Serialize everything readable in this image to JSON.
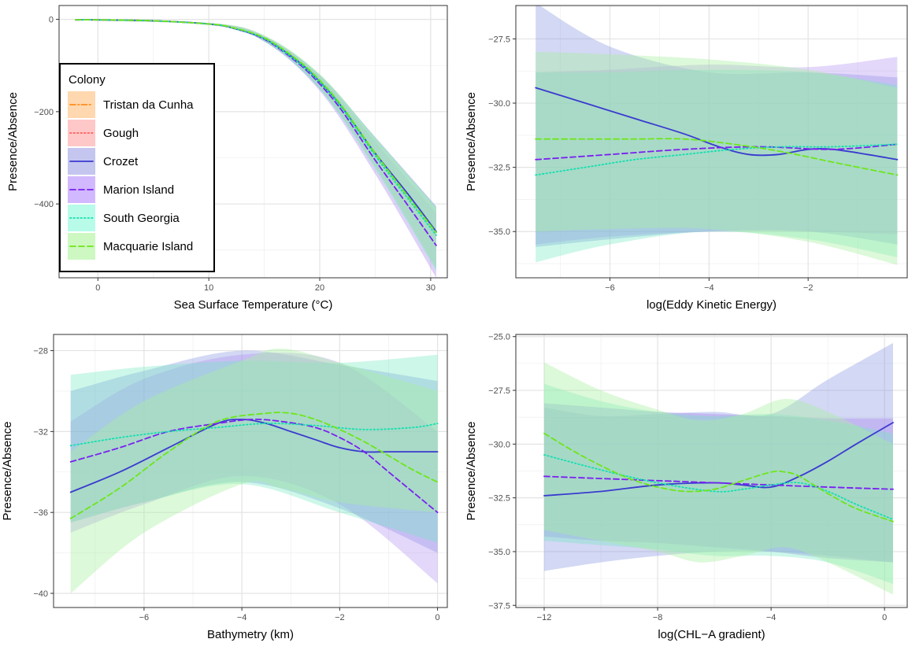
{
  "legend": {
    "title": "Colony",
    "entries": [
      {
        "name": "Tristan da Cunha",
        "color": "#ff8c1a",
        "band": "#ffd8b0",
        "dash": "dashdot"
      },
      {
        "name": "Gough",
        "color": "#ff5a5a",
        "band": "#ffc8c8",
        "dash": "dotted"
      },
      {
        "name": "Crozet",
        "color": "#3a3ad0",
        "band": "#c4c6f0",
        "dash": "solid"
      },
      {
        "name": "Marion Island",
        "color": "#7a1ff0",
        "band": "#d2b8ff",
        "dash": "dashed"
      },
      {
        "name": "South Georgia",
        "color": "#10e0b0",
        "band": "#b8fbe8",
        "dash": "dotted"
      },
      {
        "name": "Macquarie Island",
        "color": "#6ee61a",
        "band": "#cdf8c2",
        "dash": "dashed"
      }
    ]
  },
  "chart_data": [
    {
      "type": "line",
      "xlabel": "Sea Surface Temperature (°C)",
      "ylabel": "Presence/Absence",
      "xlim": [
        -3.5,
        31.5
      ],
      "ylim": [
        -560,
        30
      ],
      "xticks": [
        0,
        10,
        20,
        30
      ],
      "yticks": [
        0,
        -200,
        -400
      ],
      "grid": true,
      "legend_position": "inside-left",
      "series": [
        {
          "name": "Crozet",
          "x": [
            -2,
            0,
            5,
            10,
            12,
            15,
            18,
            20,
            22,
            25,
            28,
            30.5
          ],
          "y": [
            -1,
            -1,
            -3,
            -10,
            -18,
            -42,
            -90,
            -135,
            -190,
            -290,
            -380,
            -460
          ],
          "band_x": [
            -2,
            10,
            15,
            20,
            25,
            30.5
          ],
          "band_lo": [
            -2,
            -12,
            -48,
            -150,
            -320,
            -540
          ],
          "band_hi": [
            0,
            -8,
            -36,
            -120,
            -255,
            -405
          ],
          "band": "#7aa2d8",
          "opacity": 0.55
        },
        {
          "name": "Marion Island",
          "x": [
            -2,
            0,
            5,
            10,
            12,
            15,
            18,
            20,
            22,
            25,
            28,
            30.5
          ],
          "y": [
            -1,
            -1,
            -3,
            -10,
            -18,
            -43,
            -94,
            -140,
            -198,
            -305,
            -405,
            -490
          ],
          "band_x": [
            -2,
            10,
            15,
            20,
            25,
            30.5
          ],
          "band_lo": [
            -2,
            -12,
            -48,
            -155,
            -335,
            -560
          ],
          "band_hi": [
            0,
            -8,
            -36,
            -122,
            -265,
            -420
          ],
          "band": "#b89af0",
          "opacity": 0.45
        },
        {
          "name": "South Georgia",
          "x": [
            -2,
            0,
            5,
            10,
            12,
            15,
            18,
            20,
            22,
            25,
            28,
            30.5
          ],
          "y": [
            -1,
            -1,
            -3,
            -10,
            -18,
            -42,
            -92,
            -136,
            -192,
            -295,
            -390,
            -468
          ],
          "band_x": [
            -2,
            10,
            15,
            20,
            25,
            30.5
          ],
          "band_lo": [
            -2,
            -12,
            -48,
            -152,
            -325,
            -545
          ],
          "band_hi": [
            0,
            -8,
            -36,
            -120,
            -258,
            -410
          ],
          "band": "#8ae8d0",
          "opacity": 0.45
        },
        {
          "name": "Macquarie Island",
          "x": [
            -2,
            0,
            5,
            10,
            12,
            15,
            18,
            20,
            22,
            25,
            28,
            30.5
          ],
          "y": [
            -1,
            -1,
            -3,
            -10,
            -17,
            -40,
            -88,
            -132,
            -188,
            -290,
            -385,
            -462
          ],
          "band_x": [
            -2,
            10,
            15,
            20,
            25,
            30.5
          ],
          "band_lo": [
            -2,
            -12,
            -46,
            -148,
            -320,
            -540
          ],
          "band_hi": [
            0,
            -8,
            -34,
            -118,
            -256,
            -408
          ],
          "band": "#b8f0a8",
          "opacity": 0.4
        }
      ]
    },
    {
      "type": "line",
      "xlabel": "log(Eddy Kinetic Energy)",
      "ylabel": "Presence/Absence",
      "xlim": [
        -7.9,
        0.0
      ],
      "ylim": [
        -36.8,
        -26.2
      ],
      "xticks": [
        -6,
        -4,
        -2
      ],
      "yticks": [
        -27.5,
        -30.0,
        -32.5,
        -35.0
      ],
      "ytick_format": "fixed1",
      "grid": true,
      "series": [
        {
          "name": "Crozet",
          "x": [
            -7.5,
            -6.5,
            -5.5,
            -4.5,
            -3.8,
            -3.2,
            -2.6,
            -2.0,
            -1.5,
            -0.8,
            -0.2
          ],
          "y": [
            -29.4,
            -30.0,
            -30.6,
            -31.2,
            -31.7,
            -32.0,
            -32.0,
            -31.8,
            -31.8,
            -32.0,
            -32.2
          ],
          "band_x": [
            -7.5,
            -6,
            -4,
            -2,
            -0.2
          ],
          "band_lo": [
            -35.6,
            -35.3,
            -35.0,
            -35.0,
            -35.5
          ],
          "band_hi": [
            -26.1,
            -27.8,
            -28.8,
            -28.8,
            -29.0
          ],
          "band": "#8090e0",
          "opacity": 0.35
        },
        {
          "name": "Marion Island",
          "x": [
            -7.5,
            -6.0,
            -4.5,
            -3.0,
            -1.5,
            -0.2
          ],
          "y": [
            -32.2,
            -32.0,
            -31.8,
            -31.7,
            -31.8,
            -31.6
          ],
          "band_x": [
            -7.5,
            -6,
            -4,
            -2,
            -0.2
          ],
          "band_lo": [
            -35.5,
            -35.2,
            -35.0,
            -35.0,
            -35.1
          ],
          "band_hi": [
            -28.8,
            -28.7,
            -28.5,
            -28.6,
            -28.2
          ],
          "band": "#b090f0",
          "opacity": 0.35
        },
        {
          "name": "South Georgia",
          "x": [
            -7.5,
            -6.5,
            -5.5,
            -4.5,
            -3.5,
            -2.5,
            -1.5,
            -0.2
          ],
          "y": [
            -32.8,
            -32.5,
            -32.2,
            -32.0,
            -31.8,
            -31.7,
            -31.7,
            -31.6
          ],
          "band_x": [
            -7.5,
            -6,
            -4,
            -2,
            -0.2
          ],
          "band_lo": [
            -36.2,
            -35.5,
            -35.0,
            -35.3,
            -36.0
          ],
          "band_hi": [
            -28.8,
            -28.8,
            -28.7,
            -28.8,
            -29.3
          ],
          "band": "#70e8c0",
          "opacity": 0.35
        },
        {
          "name": "Macquarie Island",
          "x": [
            -7.5,
            -6.5,
            -5.5,
            -4.5,
            -3.5,
            -2.5,
            -1.5,
            -0.2
          ],
          "y": [
            -31.4,
            -31.4,
            -31.4,
            -31.4,
            -31.6,
            -31.9,
            -32.3,
            -32.8
          ],
          "band_x": [
            -7.5,
            -6,
            -4,
            -2,
            -0.2
          ],
          "band_lo": [
            -35.0,
            -34.9,
            -34.9,
            -35.4,
            -36.3
          ],
          "band_hi": [
            -28.0,
            -28.1,
            -28.3,
            -28.7,
            -29.4
          ],
          "band": "#a8f0a0",
          "opacity": 0.4
        }
      ]
    },
    {
      "type": "line",
      "xlabel": "Bathymetry (km)",
      "ylabel": "Presence/Absence",
      "xlim": [
        -7.85,
        0.2
      ],
      "ylim": [
        -40.7,
        -27.2
      ],
      "xticks": [
        -6,
        -4,
        -2,
        0
      ],
      "yticks": [
        -28,
        -32,
        -36,
        -40
      ],
      "grid": true,
      "series": [
        {
          "name": "Crozet",
          "x": [
            -7.5,
            -6.5,
            -5.5,
            -4.5,
            -4.0,
            -3.5,
            -3.0,
            -2.5,
            -2.0,
            -1.5,
            -1.0,
            0
          ],
          "y": [
            -35.0,
            -34.0,
            -32.8,
            -31.6,
            -31.4,
            -31.6,
            -32.0,
            -32.4,
            -32.8,
            -33.0,
            -33.0,
            -33.0
          ],
          "band_x": [
            -7.5,
            -6,
            -4,
            -2,
            0
          ],
          "band_lo": [
            -36.5,
            -35.5,
            -34.5,
            -35.8,
            -38.0
          ],
          "band_hi": [
            -30.0,
            -29.0,
            -28.0,
            -28.7,
            -29.5
          ],
          "band": "#8090e0",
          "opacity": 0.35
        },
        {
          "name": "Marion Island",
          "x": [
            -7.5,
            -6.5,
            -5.5,
            -4.5,
            -3.8,
            -3.2,
            -2.5,
            -2.0,
            -1.5,
            -1.0,
            -0.5,
            0
          ],
          "y": [
            -33.5,
            -32.8,
            -32.0,
            -31.6,
            -31.4,
            -31.5,
            -31.8,
            -32.3,
            -33.0,
            -34.0,
            -35.0,
            -36.0
          ],
          "band_x": [
            -7.5,
            -6,
            -4,
            -2,
            0
          ],
          "band_lo": [
            -37.0,
            -35.6,
            -34.2,
            -35.6,
            -39.5
          ],
          "band_hi": [
            -31.5,
            -29.4,
            -28.2,
            -28.6,
            -32.0
          ],
          "band": "#b090f0",
          "opacity": 0.35
        },
        {
          "name": "South Georgia",
          "x": [
            -7.5,
            -6.5,
            -5.5,
            -4.5,
            -3.5,
            -2.5,
            -1.5,
            -0.5,
            0
          ],
          "y": [
            -32.7,
            -32.3,
            -32.0,
            -31.8,
            -31.6,
            -31.7,
            -31.9,
            -31.8,
            -31.6
          ],
          "band_x": [
            -7.5,
            -6,
            -4,
            -2,
            0
          ],
          "band_lo": [
            -36.5,
            -35.5,
            -34.6,
            -36.0,
            -37.5
          ],
          "band_hi": [
            -29.2,
            -28.8,
            -28.5,
            -28.6,
            -28.2
          ],
          "band": "#70e8c0",
          "opacity": 0.35
        },
        {
          "name": "Macquarie Island",
          "x": [
            -7.5,
            -6.5,
            -5.5,
            -4.5,
            -3.5,
            -3.0,
            -2.5,
            -2.0,
            -1.5,
            -1.0,
            -0.5,
            0
          ],
          "y": [
            -36.3,
            -34.8,
            -33.0,
            -31.5,
            -31.1,
            -31.1,
            -31.4,
            -31.9,
            -32.5,
            -33.2,
            -33.9,
            -34.5
          ],
          "band_x": [
            -7.5,
            -6,
            -4,
            -3.2,
            -2,
            0
          ],
          "band_lo": [
            -40.0,
            -37.0,
            -34.6,
            -34.8,
            -35.5,
            -36.0
          ],
          "band_hi": [
            -33.0,
            -30.5,
            -28.5,
            -27.9,
            -28.6,
            -30.0
          ],
          "band": "#a8f0a0",
          "opacity": 0.4
        }
      ]
    },
    {
      "type": "line",
      "xlabel": "log(CHL−A gradient)",
      "ylabel": "Presence/Absence",
      "xlim": [
        -13.0,
        0.8
      ],
      "ylim": [
        -37.6,
        -24.9
      ],
      "xticks": [
        -12,
        -8,
        -4,
        0
      ],
      "yticks": [
        -25.0,
        -27.5,
        -30.0,
        -32.5,
        -35.0,
        -37.5
      ],
      "ytick_format": "fixed1",
      "grid": true,
      "series": [
        {
          "name": "Crozet",
          "x": [
            -12,
            -10,
            -8,
            -6,
            -5,
            -4,
            -3,
            -2,
            -1,
            0.3
          ],
          "y": [
            -32.4,
            -32.2,
            -31.9,
            -31.8,
            -31.9,
            -32.0,
            -31.5,
            -30.8,
            -30.0,
            -29.0
          ],
          "band_x": [
            -12,
            -10,
            -8,
            -6,
            -4,
            -2,
            0.3
          ],
          "band_lo": [
            -35.9,
            -35.5,
            -35.2,
            -35.0,
            -35.0,
            -35.2,
            -35.5
          ],
          "band_hi": [
            -28.3,
            -28.7,
            -28.6,
            -28.5,
            -28.6,
            -27.0,
            -25.3
          ],
          "band": "#8090e0",
          "opacity": 0.35
        },
        {
          "name": "Marion Island",
          "x": [
            -12,
            -10,
            -8,
            -6,
            -4,
            -2,
            0.3
          ],
          "y": [
            -31.5,
            -31.6,
            -31.7,
            -31.8,
            -31.9,
            -32.0,
            -32.1
          ],
          "band_x": [
            -12,
            -10,
            -8,
            -6,
            -4,
            -2,
            0.3
          ],
          "band_lo": [
            -34.3,
            -34.5,
            -34.6,
            -34.8,
            -35.0,
            -35.3,
            -35.5
          ],
          "band_hi": [
            -28.1,
            -28.3,
            -28.5,
            -28.6,
            -28.7,
            -28.8,
            -28.8
          ],
          "band": "#b090f0",
          "opacity": 0.45
        },
        {
          "name": "South Georgia",
          "x": [
            -12,
            -10,
            -8,
            -6,
            -5,
            -4,
            -3,
            -2,
            -1,
            0.3
          ],
          "y": [
            -30.5,
            -31.2,
            -31.8,
            -32.2,
            -32.1,
            -31.9,
            -31.8,
            -32.2,
            -32.8,
            -33.5
          ],
          "band_x": [
            -12,
            -10,
            -8,
            -6,
            -4,
            -2,
            0.3
          ],
          "band_lo": [
            -34.5,
            -34.7,
            -34.9,
            -35.2,
            -35.2,
            -35.5,
            -36.5
          ],
          "band_hi": [
            -27.2,
            -28.0,
            -28.5,
            -28.7,
            -28.6,
            -28.9,
            -29.5
          ],
          "band": "#70e8c0",
          "opacity": 0.35
        },
        {
          "name": "Macquarie Island",
          "x": [
            -12,
            -11,
            -10,
            -9,
            -8,
            -7,
            -6,
            -5,
            -4,
            -3.5,
            -3,
            -2,
            -1,
            0.3
          ],
          "y": [
            -29.5,
            -30.3,
            -31.0,
            -31.6,
            -32.0,
            -32.2,
            -32.1,
            -31.7,
            -31.3,
            -31.3,
            -31.5,
            -32.3,
            -33.0,
            -33.6
          ],
          "band_x": [
            -12,
            -10,
            -8,
            -6.5,
            -5,
            -3.5,
            -2,
            0.3
          ],
          "band_lo": [
            -34.0,
            -34.5,
            -35.0,
            -35.5,
            -35.2,
            -34.8,
            -35.5,
            -37.0
          ],
          "band_hi": [
            -26.2,
            -27.5,
            -28.4,
            -28.9,
            -28.6,
            -27.9,
            -28.5,
            -30.0
          ],
          "band": "#a8f0a0",
          "opacity": 0.4
        }
      ]
    }
  ]
}
